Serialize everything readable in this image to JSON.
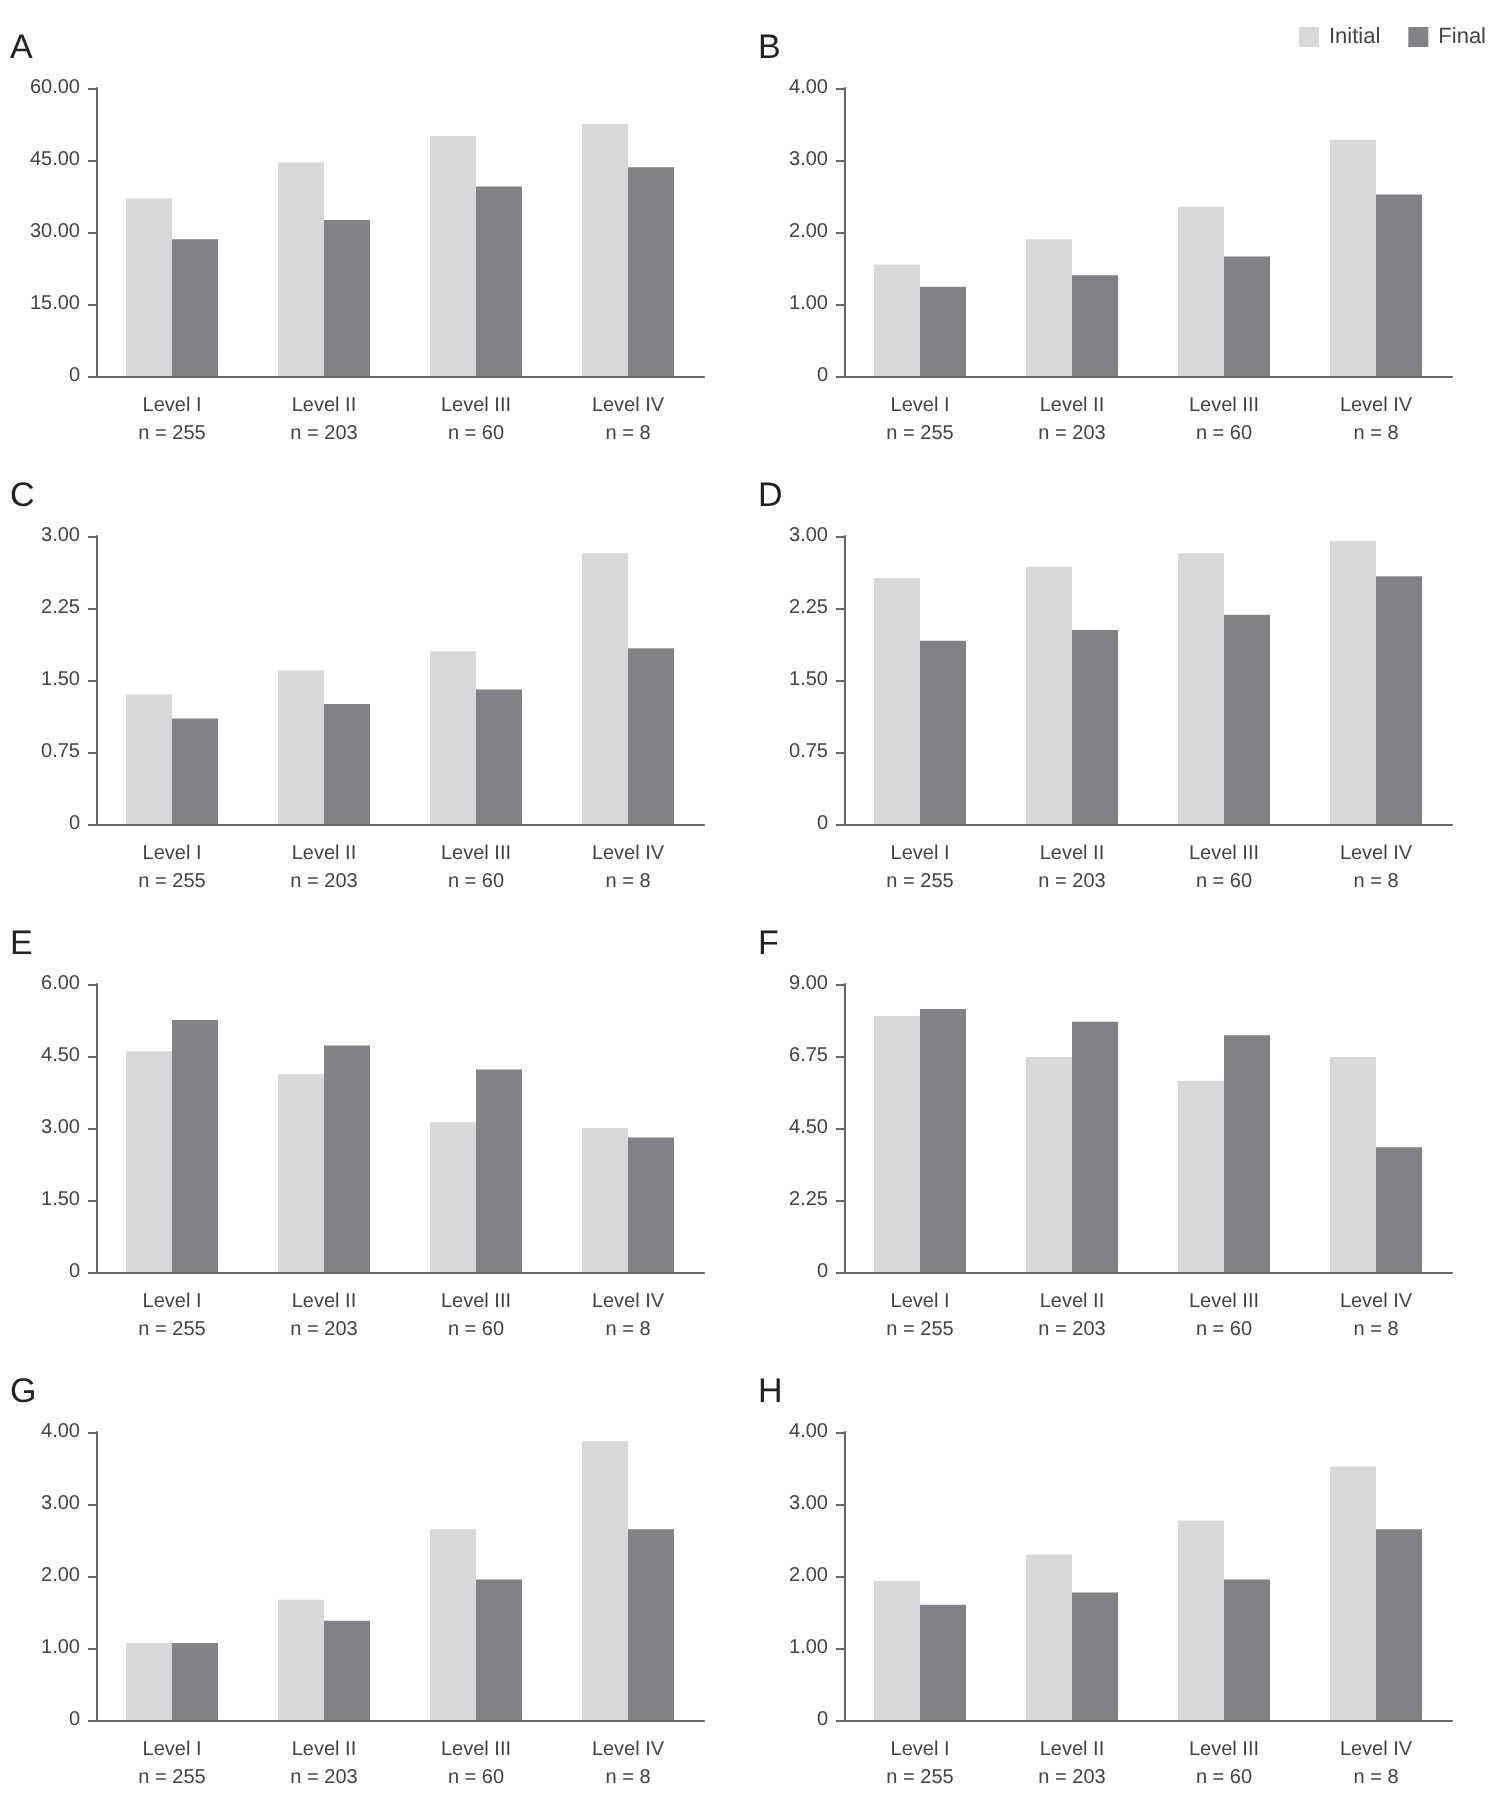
{
  "chart_data": [
    {
      "type": "bar",
      "title": "A",
      "categories": [
        "Level I\nn = 255",
        "Level II\nn = 203",
        "Level III\nn = 60",
        "Level IV\nn = 8"
      ],
      "series": [
        {
          "color": "#d7d9da",
          "values": [
            37,
            44.5,
            50,
            52.5
          ]
        },
        {
          "color": "#818285",
          "values": [
            28.5,
            32.5,
            39.5,
            43.5
          ]
        }
      ],
      "ylim": [
        0,
        60
      ],
      "yticks": [
        {
          "value": 0,
          "label": "0"
        },
        {
          "value": 15,
          "label": "15.00"
        },
        {
          "value": 30,
          "label": "30.00"
        },
        {
          "value": 45,
          "label": "45.00"
        },
        {
          "value": 60,
          "label": "60.00"
        }
      ],
      "grid": false,
      "legend": false
    },
    {
      "type": "bar",
      "title": "B",
      "categories": [
        "Level I\nn = 255",
        "Level II\nn = 203",
        "Level III\nn = 60",
        "Level IV\nn = 8"
      ],
      "series": [
        {
          "name": "Initial",
          "color": "#d7d9da",
          "values": [
            1.55,
            1.9,
            2.35,
            3.28
          ]
        },
        {
          "name": "Final",
          "color": "#818285",
          "values": [
            1.24,
            1.4,
            1.66,
            2.52
          ]
        }
      ],
      "ylim": [
        0,
        4
      ],
      "yticks": [
        {
          "value": 0,
          "label": "0"
        },
        {
          "value": 1,
          "label": "1.00"
        },
        {
          "value": 2,
          "label": "2.00"
        },
        {
          "value": 3,
          "label": "3.00"
        },
        {
          "value": 4,
          "label": "4.00"
        }
      ],
      "grid": false,
      "legend": "top right"
    },
    {
      "type": "bar",
      "title": "C",
      "categories": [
        "Level I\nn = 255",
        "Level II\nn = 203",
        "Level III\nn = 60",
        "Level IV\nn = 8"
      ],
      "series": [
        {
          "color": "#d7d9da",
          "values": [
            1.35,
            1.6,
            1.8,
            2.82
          ]
        },
        {
          "color": "#818285",
          "values": [
            1.1,
            1.25,
            1.4,
            1.83
          ]
        }
      ],
      "ylim": [
        0,
        3
      ],
      "yticks": [
        {
          "value": 0,
          "label": "0"
        },
        {
          "value": 0.75,
          "label": "0.75"
        },
        {
          "value": 1.5,
          "label": "1.50"
        },
        {
          "value": 2.25,
          "label": "2.25"
        },
        {
          "value": 3,
          "label": "3.00"
        }
      ],
      "grid": false,
      "legend": false
    },
    {
      "type": "bar",
      "title": "D",
      "categories": [
        "Level I\nn = 255",
        "Level II\nn = 203",
        "Level III\nn = 60",
        "Level IV\nn = 8"
      ],
      "series": [
        {
          "color": "#d7d9da",
          "values": [
            2.56,
            2.68,
            2.82,
            2.95
          ]
        },
        {
          "color": "#818285",
          "values": [
            1.91,
            2.02,
            2.18,
            2.58
          ]
        }
      ],
      "ylim": [
        0,
        3
      ],
      "yticks": [
        {
          "value": 0,
          "label": "0"
        },
        {
          "value": 0.75,
          "label": "0.75"
        },
        {
          "value": 1.5,
          "label": "1.50"
        },
        {
          "value": 2.25,
          "label": "2.25"
        },
        {
          "value": 3,
          "label": "3.00"
        }
      ],
      "grid": false,
      "legend": false
    },
    {
      "type": "bar",
      "title": "E",
      "categories": [
        "Level I\nn = 255",
        "Level II\nn = 203",
        "Level III\nn = 60",
        "Level IV\nn = 8"
      ],
      "series": [
        {
          "color": "#d7d9da",
          "values": [
            4.6,
            4.12,
            3.12,
            3.0
          ]
        },
        {
          "color": "#818285",
          "values": [
            5.25,
            4.72,
            4.22,
            2.8
          ]
        }
      ],
      "ylim": [
        0,
        6
      ],
      "yticks": [
        {
          "value": 0,
          "label": "0"
        },
        {
          "value": 1.5,
          "label": "1.50"
        },
        {
          "value": 3,
          "label": "3.00"
        },
        {
          "value": 4.5,
          "label": "4.50"
        },
        {
          "value": 6,
          "label": "6.00"
        }
      ],
      "grid": false,
      "legend": false
    },
    {
      "type": "bar",
      "title": "F",
      "categories": [
        "Level I\nn = 255",
        "Level II\nn = 203",
        "Level III\nn = 60",
        "Level IV\nn = 8"
      ],
      "series": [
        {
          "color": "#d7d9da",
          "values": [
            8.0,
            6.72,
            5.98,
            6.72
          ]
        },
        {
          "color": "#818285",
          "values": [
            8.22,
            7.82,
            7.4,
            3.9
          ]
        }
      ],
      "ylim": [
        0,
        9
      ],
      "yticks": [
        {
          "value": 0,
          "label": "0"
        },
        {
          "value": 2.25,
          "label": "2.25"
        },
        {
          "value": 4.5,
          "label": "4.50"
        },
        {
          "value": 6.75,
          "label": "6.75"
        },
        {
          "value": 9,
          "label": "9.00"
        }
      ],
      "grid": false,
      "legend": false
    },
    {
      "type": "bar",
      "title": "G",
      "categories": [
        "Level I\nn = 255",
        "Level II\nn = 203",
        "Level III\nn = 60",
        "Level IV\nn = 8"
      ],
      "series": [
        {
          "color": "#d7d9da",
          "values": [
            1.07,
            1.67,
            2.65,
            3.87
          ]
        },
        {
          "color": "#818285",
          "values": [
            1.07,
            1.38,
            1.95,
            2.65
          ]
        }
      ],
      "ylim": [
        0,
        4
      ],
      "yticks": [
        {
          "value": 0,
          "label": "0"
        },
        {
          "value": 1,
          "label": "1.00"
        },
        {
          "value": 2,
          "label": "2.00"
        },
        {
          "value": 3,
          "label": "3.00"
        },
        {
          "value": 4,
          "label": "4.00"
        }
      ],
      "grid": false,
      "legend": false
    },
    {
      "type": "bar",
      "title": "H",
      "categories": [
        "Level I\nn = 255",
        "Level II\nn = 203",
        "Level III\nn = 60",
        "Level IV\nn = 8"
      ],
      "series": [
        {
          "color": "#d7d9da",
          "values": [
            1.93,
            2.3,
            2.77,
            3.52
          ]
        },
        {
          "color": "#818285",
          "values": [
            1.6,
            1.77,
            1.95,
            2.65
          ]
        }
      ],
      "ylim": [
        0,
        4
      ],
      "yticks": [
        {
          "value": 0,
          "label": "0"
        },
        {
          "value": 1,
          "label": "1.00"
        },
        {
          "value": 2,
          "label": "2.00"
        },
        {
          "value": 3,
          "label": "3.00"
        },
        {
          "value": 4,
          "label": "4.00"
        }
      ],
      "grid": false,
      "legend": false
    }
  ]
}
